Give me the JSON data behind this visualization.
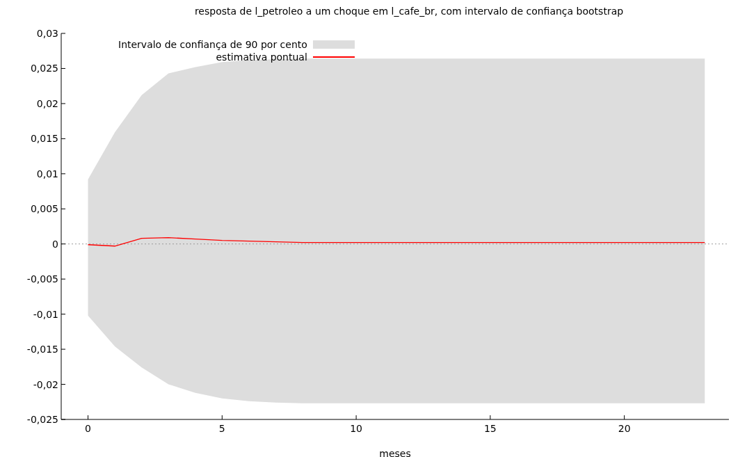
{
  "chart_data": {
    "type": "line",
    "title": "resposta de l_petroleo a um choque em l_cafe_br, com intervalo de confiança bootstrap",
    "xlabel": "meses",
    "x": [
      0,
      1,
      2,
      3,
      4,
      5,
      6,
      7,
      8,
      9,
      10,
      11,
      12,
      13,
      14,
      15,
      16,
      17,
      18,
      19,
      20,
      21,
      22,
      23
    ],
    "series": [
      {
        "name": "estimativa pontual",
        "color": "#ff0000",
        "values": [
          -0.0001,
          -0.0003,
          0.0008,
          0.0009,
          0.0007,
          0.0005,
          0.0004,
          0.0003,
          0.0002,
          0.0002,
          0.0002,
          0.0002,
          0.0002,
          0.0002,
          0.0002,
          0.0002,
          0.0002,
          0.0002,
          0.0002,
          0.0002,
          0.0002,
          0.0002,
          0.0002,
          0.0002
        ],
        "lower": [
          -0.0102,
          -0.0146,
          -0.0176,
          -0.02,
          -0.0212,
          -0.022,
          -0.0224,
          -0.0226,
          -0.0227,
          -0.0227,
          -0.0227,
          -0.0227,
          -0.0227,
          -0.0227,
          -0.0227,
          -0.0227,
          -0.0227,
          -0.0227,
          -0.0227,
          -0.0227,
          -0.0227,
          -0.0227,
          -0.0227,
          -0.0227
        ],
        "upper": [
          0.0092,
          0.0159,
          0.0212,
          0.0243,
          0.0252,
          0.0259,
          0.0262,
          0.0263,
          0.0264,
          0.0264,
          0.0264,
          0.0264,
          0.0264,
          0.0264,
          0.0264,
          0.0264,
          0.0264,
          0.0264,
          0.0264,
          0.0264,
          0.0264,
          0.0264,
          0.0264,
          0.0264
        ]
      }
    ],
    "annotations": [
      "Intervalo de confiança de 90 por cento"
    ],
    "xlim": [
      -1,
      23.9
    ],
    "xticks": [
      0,
      5,
      10,
      15,
      20
    ],
    "ylim": [
      -0.025,
      0.03
    ],
    "yticks": [
      {
        "value": -0.025,
        "label": "-0,025"
      },
      {
        "value": -0.02,
        "label": "-0,02"
      },
      {
        "value": -0.015,
        "label": "-0,015"
      },
      {
        "value": -0.01,
        "label": "-0,01"
      },
      {
        "value": -0.005,
        "label": "-0,005"
      },
      {
        "value": 0,
        "label": "0"
      },
      {
        "value": 0.005,
        "label": "0,005"
      },
      {
        "value": 0.01,
        "label": "0,01"
      },
      {
        "value": 0.015,
        "label": "0,015"
      },
      {
        "value": 0.02,
        "label": "0,02"
      },
      {
        "value": 0.025,
        "label": "0,025"
      },
      {
        "value": 0.03,
        "label": "0,03"
      }
    ],
    "ref_lines": [
      {
        "axis": "y",
        "value": 0,
        "color": "#999999",
        "line_style": "dotted"
      }
    ],
    "legend": "top left",
    "grid": false,
    "marker": "none"
  }
}
